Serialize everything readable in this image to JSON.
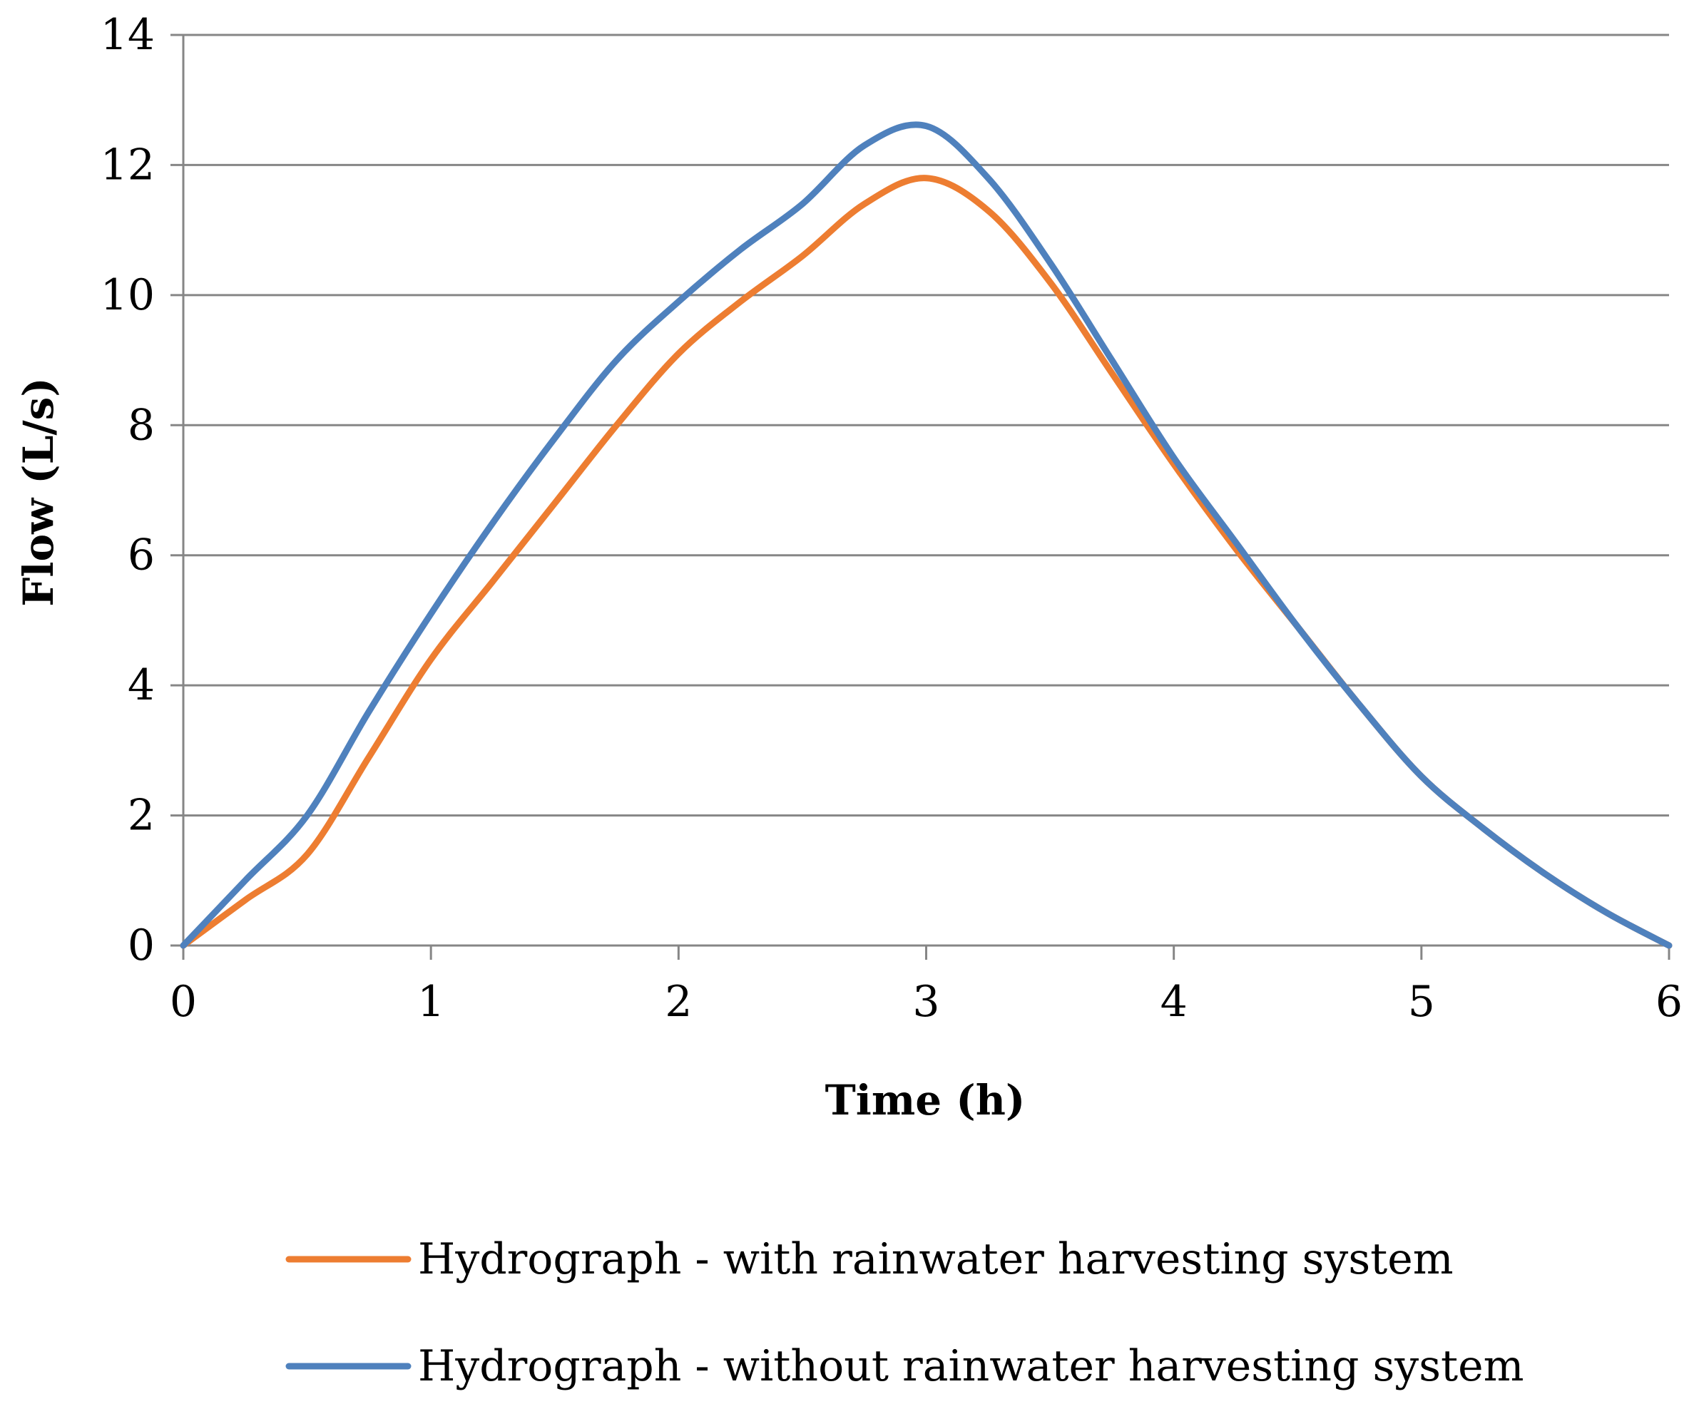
{
  "chart_data": {
    "type": "line",
    "title": "",
    "xlabel": "Time (h)",
    "ylabel": "Flow (L/s)",
    "xlim": [
      0,
      6
    ],
    "ylim": [
      0,
      14
    ],
    "x_ticks": [
      "0",
      "1",
      "2",
      "3",
      "4",
      "5",
      "6"
    ],
    "y_ticks": [
      "0",
      "2",
      "4",
      "6",
      "8",
      "10",
      "12",
      "14"
    ],
    "grid": "horizontal",
    "legend_position": "bottom",
    "series": [
      {
        "name": "Hydrograph - with rainwater harvesting system",
        "color": "#ED7D31",
        "x": [
          0,
          0.25,
          0.5,
          0.75,
          1.0,
          1.25,
          1.5,
          1.75,
          2.0,
          2.25,
          2.5,
          2.75,
          3.0,
          3.25,
          3.5,
          3.75,
          4.0,
          4.25,
          4.5,
          4.75,
          5.0,
          5.25,
          5.5,
          5.75,
          6.0
        ],
        "values": [
          0,
          0.7,
          1.4,
          2.9,
          4.4,
          5.6,
          6.8,
          8.0,
          9.1,
          9.9,
          10.6,
          11.4,
          11.8,
          11.3,
          10.2,
          8.8,
          7.4,
          6.1,
          4.9,
          3.7,
          2.6,
          1.8,
          1.1,
          0.5,
          0
        ]
      },
      {
        "name": "Hydrograph - without rainwater harvesting system",
        "color": "#4F81BD",
        "x": [
          0,
          0.25,
          0.5,
          0.75,
          1.0,
          1.25,
          1.5,
          1.75,
          2.0,
          2.25,
          2.5,
          2.75,
          3.0,
          3.25,
          3.5,
          3.75,
          4.0,
          4.25,
          4.5,
          4.75,
          5.0,
          5.25,
          5.5,
          5.75,
          6.0
        ],
        "values": [
          0,
          1.0,
          2.0,
          3.6,
          5.1,
          6.5,
          7.8,
          9.0,
          9.9,
          10.7,
          11.4,
          12.3,
          12.6,
          11.8,
          10.5,
          9.0,
          7.5,
          6.2,
          4.9,
          3.7,
          2.6,
          1.8,
          1.1,
          0.5,
          0
        ]
      }
    ]
  }
}
